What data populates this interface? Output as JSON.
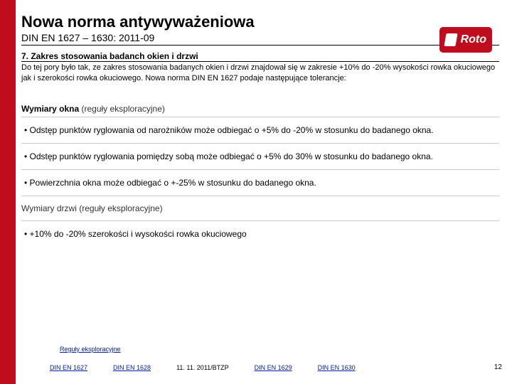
{
  "header": {
    "title": "Nowa norma antywyważeniowa",
    "subtitle": "DIN EN 1627 – 1630: 2011-09"
  },
  "logo": {
    "text": "Roto"
  },
  "section": {
    "title": "7. Zakres stosowania badanch okien i drzwi",
    "intro": "Do tej pory było tak, ze zakres stosowania badanych okien i drzwi znajdował się w zakresie +10% do -20% wysokości rowka okuciowego jak i szerokości rowka okuciowego.  Nowa norma DIN EN 1627 podaje następujące tolerancje:"
  },
  "rules": {
    "window_header_strong": "Wymiary okna",
    "window_header_rest": " (reguły eksploracyjne)",
    "bullets": [
      "•  Odstęp punktów ryglowania od narożników może odbiegać o +5% do -20% w stosunku do badanego okna.",
      "•  Odstęp punktów ryglowania pomiędzy sobą może odbiegać o +5% do 30% w stosunku do badanego okna.",
      "•  Powierzchnia okna może odbiegać o +-25% w stosunku do badanego okna."
    ],
    "door_header": "Wymiary drzwi (reguły eksploracyjne)",
    "door_bullet": "•  +10% do  -20% szerokości i wysokości rowka okuciowego"
  },
  "footer": {
    "link_above": "Reguły eksploracyjne",
    "links": [
      "DIN EN 1627",
      "DIN EN 1628",
      "DIN EN 1629",
      "DIN EN 1630"
    ],
    "date": "11. 11. 2011/BTZP",
    "page": "12"
  },
  "colors": {
    "accent": "#c00d1e",
    "link": "#0020a0"
  }
}
